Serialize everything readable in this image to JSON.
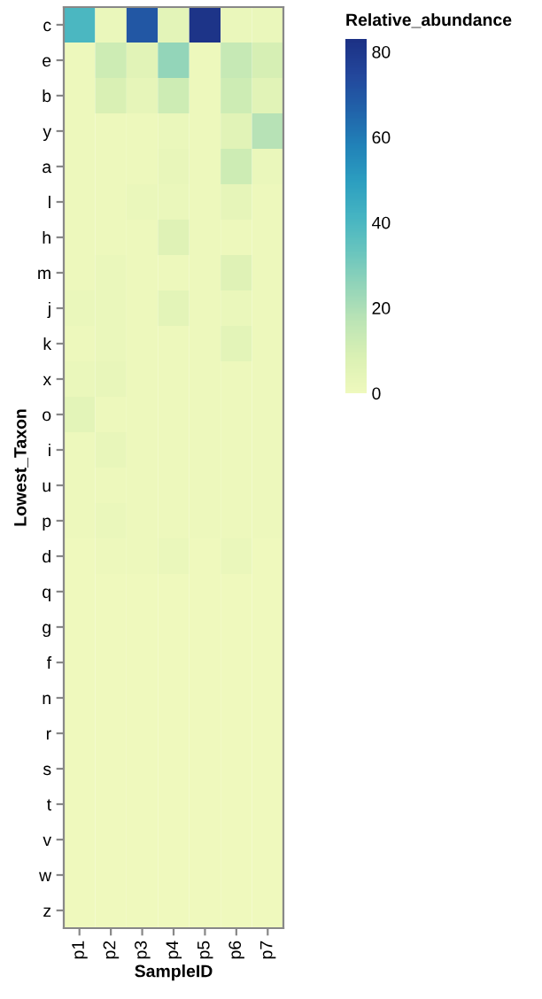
{
  "chart_data": {
    "type": "heatmap",
    "xlabel": "SampleID",
    "ylabel": "Lowest_Taxon",
    "clabel": "Relative_abundance",
    "categories": [
      "p1",
      "p2",
      "p3",
      "p4",
      "p5",
      "p6",
      "p7"
    ],
    "y_categories": [
      "c",
      "e",
      "b",
      "y",
      "a",
      "l",
      "h",
      "m",
      "j",
      "k",
      "x",
      "o",
      "i",
      "u",
      "p",
      "d",
      "q",
      "g",
      "f",
      "n",
      "r",
      "s",
      "t",
      "v",
      "w",
      "z"
    ],
    "cells": [
      [
        40,
        2,
        70,
        5,
        82,
        2,
        2
      ],
      [
        1,
        12,
        6,
        25,
        1,
        14,
        10
      ],
      [
        1,
        9,
        4,
        12,
        1,
        12,
        6
      ],
      [
        1,
        1,
        1,
        2,
        1,
        6,
        18
      ],
      [
        1,
        1,
        1,
        3,
        1,
        12,
        2
      ],
      [
        1,
        1,
        2,
        2,
        1,
        4,
        1
      ],
      [
        1,
        1,
        1,
        7,
        1,
        1,
        1
      ],
      [
        1,
        2,
        1,
        1,
        1,
        7,
        1
      ],
      [
        2,
        2,
        1,
        5,
        1,
        2,
        1
      ],
      [
        1,
        2,
        1,
        1,
        1,
        5,
        1
      ],
      [
        2,
        3,
        1,
        1,
        1,
        1,
        1
      ],
      [
        5,
        1,
        1,
        1,
        1,
        1,
        1
      ],
      [
        1,
        3,
        1,
        1,
        1,
        1,
        1
      ],
      [
        1,
        1,
        1,
        1,
        1,
        1,
        1
      ],
      [
        1,
        2,
        1,
        1,
        1,
        1,
        1
      ],
      [
        0,
        1,
        1,
        2,
        0,
        2,
        0
      ],
      [
        0,
        0,
        0,
        0,
        0,
        0,
        0
      ],
      [
        0,
        0,
        0,
        0,
        0,
        0,
        0
      ],
      [
        0,
        0,
        0,
        0,
        0,
        0,
        0
      ],
      [
        0,
        0,
        0,
        0,
        0,
        0,
        0
      ],
      [
        0,
        0,
        0,
        0,
        0,
        0,
        0
      ],
      [
        0,
        0,
        0,
        0,
        0,
        0,
        0
      ],
      [
        0,
        0,
        0,
        0,
        0,
        0,
        0
      ],
      [
        0,
        0,
        0,
        0,
        0,
        0,
        0
      ],
      [
        0,
        0,
        0,
        0,
        0,
        0,
        0
      ],
      [
        0,
        0,
        0,
        0,
        0,
        0,
        0
      ]
    ],
    "clim": [
      0,
      83
    ],
    "cticks": [
      0,
      20,
      40,
      60,
      80
    ]
  }
}
